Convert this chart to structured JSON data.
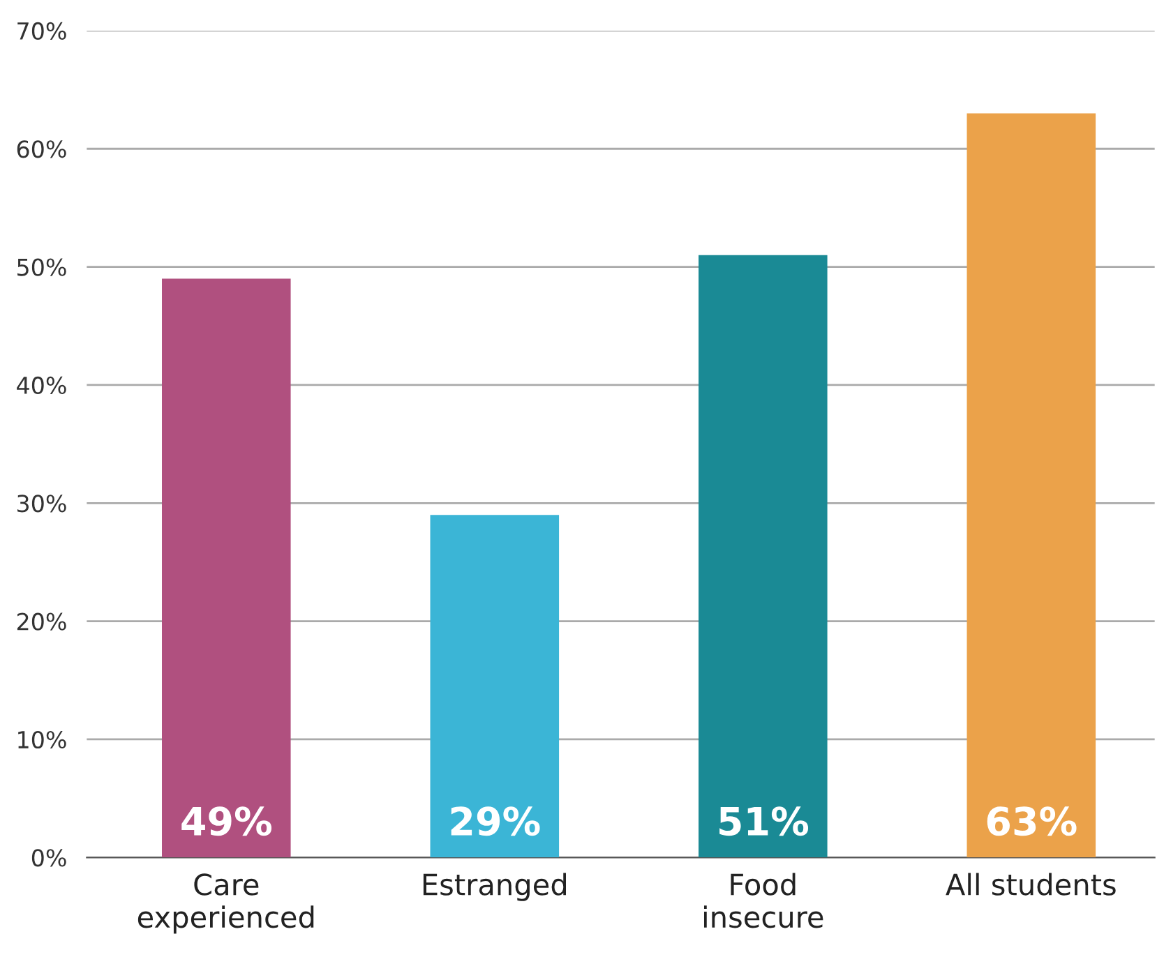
{
  "chart_data": {
    "type": "bar",
    "categories": [
      "Care\nexperienced",
      "Estranged",
      "Food\ninsecure",
      "All students"
    ],
    "values": [
      49,
      29,
      51,
      63
    ],
    "colors": [
      "#b0507f",
      "#3bb5d6",
      "#1a8a95",
      "#eba24a"
    ],
    "value_labels": [
      "49%",
      "29%",
      "51%",
      "63%"
    ],
    "ylim": [
      0,
      70
    ],
    "yticks": [
      {
        "value": 0,
        "label": "0%"
      },
      {
        "value": 10,
        "label": "10%"
      },
      {
        "value": 20,
        "label": "20%"
      },
      {
        "value": 30,
        "label": "30%"
      },
      {
        "value": 40,
        "label": "40%"
      },
      {
        "value": 50,
        "label": "50%"
      },
      {
        "value": 60,
        "label": "60%"
      },
      {
        "value": 70,
        "label": "70%"
      }
    ],
    "grid": "y"
  }
}
